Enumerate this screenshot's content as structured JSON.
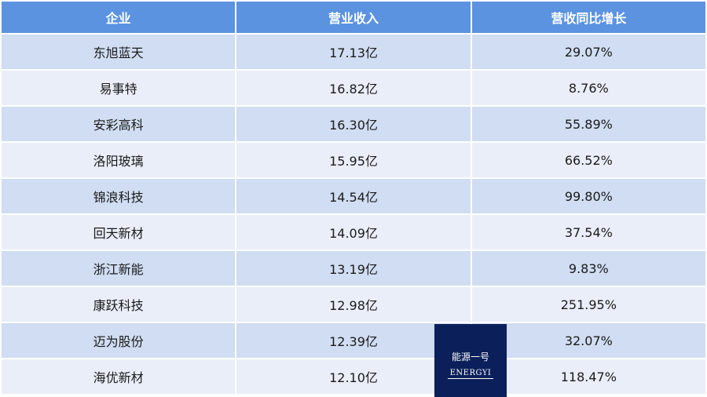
{
  "table": {
    "headers": [
      "企业",
      "营业收入",
      "营收同比增长"
    ],
    "rows": [
      [
        "东旭蓝天",
        "17.13亿",
        "29.07%"
      ],
      [
        "易事特",
        "16.82亿",
        "8.76%"
      ],
      [
        "安彩高科",
        "16.30亿",
        "55.89%"
      ],
      [
        "洛阳玻璃",
        "15.95亿",
        "66.52%"
      ],
      [
        "锦浪科技",
        "14.54亿",
        "99.80%"
      ],
      [
        "回天新材",
        "14.09亿",
        "37.54%"
      ],
      [
        "浙江新能",
        "13.19亿",
        "9.83%"
      ],
      [
        "康跃科技",
        "12.98亿",
        "251.95%"
      ],
      [
        "迈为股份",
        "12.39亿",
        "32.07%"
      ],
      [
        "海优新材",
        "12.10亿",
        "118.47%"
      ]
    ]
  },
  "watermark": {
    "cn": "能源一号",
    "en": "ENERGYI"
  },
  "colors": {
    "header": "#5b93e0",
    "row_odd": "#d0ddf2",
    "row_even": "#e9eef9",
    "logo": "#0b1f5a"
  }
}
